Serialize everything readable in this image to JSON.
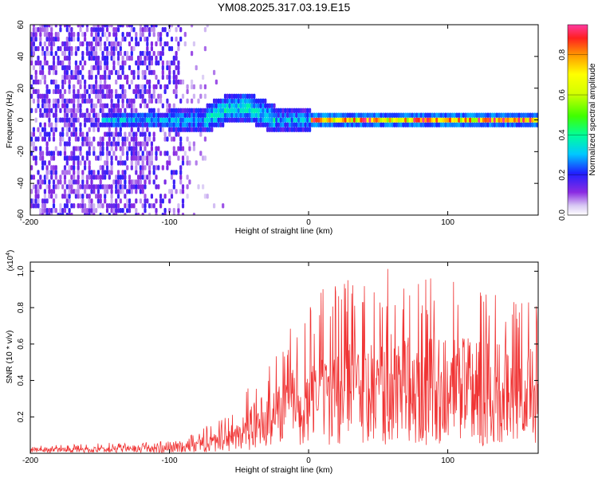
{
  "chart_data": [
    {
      "type": "heatmap",
      "title": "YM08.2025.317.03.19.E15",
      "xlabel": "Height of straight line (km)",
      "ylabel": "Frequency (Hz)",
      "xlim": [
        -200,
        165
      ],
      "ylim": [
        -60,
        60
      ],
      "xticks": [
        -200,
        -100,
        0,
        100
      ],
      "yticks": [
        -60,
        -40,
        -20,
        0,
        20,
        40,
        60
      ],
      "colorbar": {
        "label": "Normalized spectral amplitude",
        "range": [
          0,
          0.95
        ],
        "ticks": [
          0.0,
          0.2,
          0.4,
          0.6,
          0.8
        ]
      },
      "features": [
        {
          "description": "diffuse noise",
          "x_range": [
            -200,
            -90
          ],
          "amplitude": 0.1
        },
        {
          "description": "band around 0 Hz",
          "x_range": [
            -150,
            0
          ],
          "amplitude": 0.25
        },
        {
          "description": "upward bump",
          "x_range": [
            -75,
            -25
          ],
          "peak_frequency": 15,
          "amplitude": 0.3
        },
        {
          "description": "narrow high-amplitude line at 0 Hz",
          "x_range": [
            0,
            165
          ],
          "amplitude": 0.85
        }
      ]
    },
    {
      "type": "line",
      "xlabel": "Height of straight line (km)",
      "ylabel": "SNR (10 * v/v)",
      "y_scale_label": "(x10",
      "y_scale_exp": "4",
      "y_scale_close": ")",
      "xlim": [
        -200,
        165
      ],
      "ylim": [
        0,
        1.05
      ],
      "xticks": [
        -200,
        -100,
        0,
        100
      ],
      "yticks": [
        0.2,
        0.4,
        0.6,
        0.8,
        1.0
      ],
      "series": [
        {
          "name": "SNR",
          "color": "#f03434",
          "x": [
            -200,
            -180,
            -160,
            -140,
            -120,
            -100,
            -90,
            -80,
            -70,
            -60,
            -50,
            -40,
            -30,
            -20,
            -10,
            0,
            10,
            20,
            30,
            40,
            50,
            60,
            70,
            80,
            90,
            100,
            110,
            120,
            130,
            140,
            150,
            160,
            165
          ],
          "y": [
            0.02,
            0.02,
            0.02,
            0.025,
            0.03,
            0.03,
            0.04,
            0.05,
            0.07,
            0.09,
            0.12,
            0.18,
            0.22,
            0.28,
            0.3,
            0.32,
            0.34,
            0.36,
            0.38,
            0.4,
            0.4,
            0.41,
            0.41,
            0.42,
            0.42,
            0.4,
            0.4,
            0.39,
            0.39,
            0.38,
            0.37,
            0.36,
            0.35
          ],
          "peak_envelope": [
            0.04,
            0.05,
            0.05,
            0.06,
            0.06,
            0.07,
            0.08,
            0.12,
            0.17,
            0.2,
            0.32,
            0.38,
            0.44,
            0.65,
            0.75,
            0.85,
            0.9,
            0.95,
            1.0,
            1.0,
            1.0,
            1.02,
            1.05,
            1.0,
            0.98,
            0.95,
            0.95,
            0.92,
            0.9,
            0.92,
            0.88,
            0.95,
            0.9
          ]
        }
      ]
    }
  ]
}
